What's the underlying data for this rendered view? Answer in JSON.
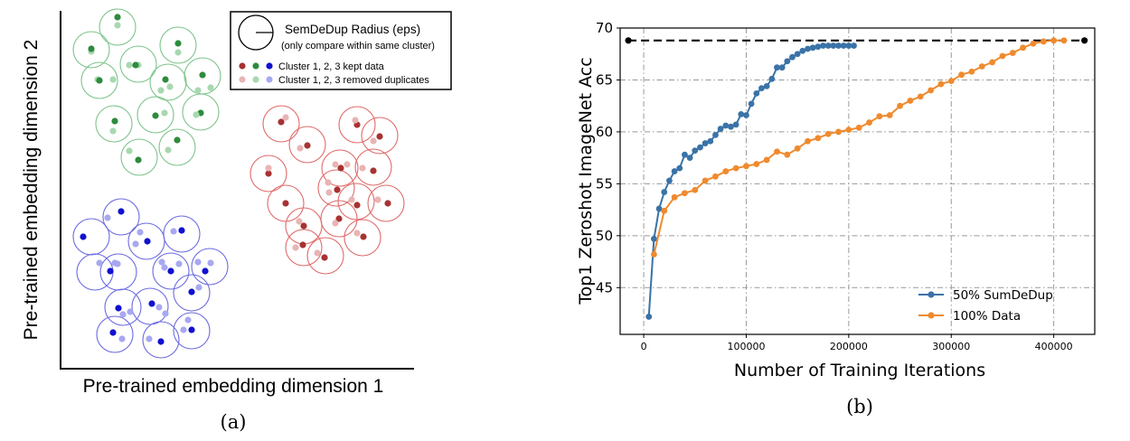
{
  "colors": {
    "green_kept": "#2e8b3e",
    "green_removed": "#a8d8b0",
    "green_circle": "#7cc48a",
    "red_kept": "#a83232",
    "red_removed": "#e8b4b4",
    "red_circle": "#e06a6a",
    "blue_kept": "#1010d0",
    "blue_removed": "#a8a8f0",
    "blue_circle": "#6b6be0",
    "series_semdedup": "#3a73a8",
    "series_full": "#ef8a2e",
    "baseline": "#000000"
  },
  "chart_data": [
    {
      "type": "scatter",
      "panel_label": "(a)",
      "xlabel": "Pre-trained embedding dimension 1",
      "ylabel": "Pre-trained embedding dimension 2",
      "legend": {
        "radius_label": "SemDeDup Radius (eps)",
        "radius_note": "(only compare within same cluster)",
        "kept_label": "Cluster 1, 2, 3 kept data",
        "removed_label": "Cluster 1, 2, 3 removed duplicates"
      },
      "clusters": [
        {
          "name": "Cluster 1",
          "color_key": "green",
          "points": [
            [
              130,
              28,
              "removed"
            ],
            [
              130,
              19,
              "kept"
            ],
            [
              101,
              57,
              "removed"
            ],
            [
              101,
              54,
              "kept"
            ],
            [
              153,
              72,
              "removed"
            ],
            [
              143,
              72,
              "removed"
            ],
            [
              150,
              72,
              "kept"
            ],
            [
              197,
              58,
              "removed"
            ],
            [
              197,
              48,
              "kept"
            ],
            [
              108,
              88,
              "removed"
            ],
            [
              125,
              88,
              "removed"
            ],
            [
              110,
              89,
              "kept"
            ],
            [
              183,
              88,
              "kept"
            ],
            [
              178,
              100,
              "removed"
            ],
            [
              188,
              96,
              "removed"
            ],
            [
              224,
              83,
              "kept"
            ],
            [
              233,
              97,
              "removed"
            ],
            [
              219,
              100,
              "removed"
            ],
            [
              127,
              134,
              "kept"
            ],
            [
              125,
              145,
              "removed"
            ],
            [
              172,
              128,
              "kept"
            ],
            [
              182,
              125,
              "removed"
            ],
            [
              222,
              125,
              "kept"
            ],
            [
              217,
              127,
              "removed"
            ],
            [
              196,
              155,
              "kept"
            ],
            [
              186,
              166,
              "removed"
            ],
            [
              153,
              177,
              "kept"
            ],
            [
              143,
              167,
              "removed"
            ]
          ],
          "circles": [
            [
              130,
              30
            ],
            [
              101,
              55
            ],
            [
              153,
              71
            ],
            [
              197,
              50
            ],
            [
              110,
              89
            ],
            [
              186,
              91
            ],
            [
              224,
              84
            ],
            [
              126,
              137
            ],
            [
              172,
              127
            ],
            [
              222,
              124
            ],
            [
              196,
              163
            ],
            [
              154,
              174
            ]
          ]
        },
        {
          "name": "Cluster 2",
          "color_key": "red",
          "points": [
            [
              311,
              135,
              "kept"
            ],
            [
              316,
              130,
              "removed"
            ],
            [
              340,
              161,
              "kept"
            ],
            [
              332,
              164,
              "removed"
            ],
            [
              395,
              138,
              "kept"
            ],
            [
              393,
              133,
              "removed"
            ],
            [
              420,
              151,
              "kept"
            ],
            [
              413,
              156,
              "removed"
            ],
            [
              297,
              192,
              "kept"
            ],
            [
              297,
              186,
              "removed"
            ],
            [
              377,
              186,
              "kept"
            ],
            [
              371,
              182,
              "removed"
            ],
            [
              384,
              182,
              "removed"
            ],
            [
              413,
              189,
              "kept"
            ],
            [
              401,
              186,
              "removed"
            ],
            [
              373,
              210,
              "kept"
            ],
            [
              363,
              202,
              "removed"
            ],
            [
              364,
              213,
              "removed"
            ],
            [
              316,
              225,
              "kept"
            ],
            [
              429,
              225,
              "kept"
            ],
            [
              418,
              221,
              "removed"
            ],
            [
              395,
              227,
              "kept"
            ],
            [
              389,
              221,
              "removed"
            ],
            [
              375,
              242,
              "kept"
            ],
            [
              371,
              247,
              "removed"
            ],
            [
              336,
              250,
              "kept"
            ],
            [
              331,
              245,
              "removed"
            ],
            [
              402,
              262,
              "kept"
            ],
            [
              395,
              258,
              "removed"
            ],
            [
              335,
              271,
              "kept"
            ],
            [
              327,
              274,
              "removed"
            ],
            [
              359,
              285,
              "kept"
            ],
            [
              351,
              280,
              "removed"
            ]
          ],
          "circles": [
            [
              311,
              137
            ],
            [
              340,
              160
            ],
            [
              395,
              138
            ],
            [
              420,
              150
            ],
            [
              297,
              192
            ],
            [
              376,
              186
            ],
            [
              413,
              185
            ],
            [
              372,
              208
            ],
            [
              316,
              225
            ],
            [
              427,
              225
            ],
            [
              394,
              223
            ],
            [
              375,
              242
            ],
            [
              336,
              250
            ],
            [
              401,
              263
            ],
            [
              336,
              274
            ],
            [
              360,
              283
            ]
          ]
        },
        {
          "name": "Cluster 3",
          "color_key": "blue",
          "points": [
            [
              134,
              234,
              "kept"
            ],
            [
              119,
              241,
              "removed"
            ],
            [
              201,
              255,
              "kept"
            ],
            [
              192,
              256,
              "removed"
            ],
            [
              92,
              262,
              "kept"
            ],
            [
              163,
              267,
              "kept"
            ],
            [
              150,
              270,
              "removed"
            ],
            [
              155,
              257,
              "removed"
            ],
            [
              122,
              300,
              "kept"
            ],
            [
              127,
              291,
              "removed"
            ],
            [
              110,
              291,
              "removed"
            ],
            [
              130,
              292,
              "removed"
            ],
            [
              189,
              300,
              "kept"
            ],
            [
              179,
              290,
              "removed"
            ],
            [
              182,
              296,
              "removed"
            ],
            [
              198,
              292,
              "removed"
            ],
            [
              227,
              300,
              "kept"
            ],
            [
              233,
              291,
              "removed"
            ],
            [
              219,
              290,
              "removed"
            ],
            [
              212,
              323,
              "kept"
            ],
            [
              220,
              318,
              "removed"
            ],
            [
              131,
              341,
              "kept"
            ],
            [
              136,
              348,
              "removed"
            ],
            [
              144,
              345,
              "removed"
            ],
            [
              168,
              336,
              "kept"
            ],
            [
              176,
              340,
              "removed"
            ],
            [
              183,
              347,
              "removed"
            ],
            [
              212,
              365,
              "kept"
            ],
            [
              208,
              354,
              "removed"
            ],
            [
              203,
              365,
              "removed"
            ],
            [
              125,
              368,
              "kept"
            ],
            [
              135,
              375,
              "removed"
            ],
            [
              178,
              378,
              "kept"
            ],
            [
              165,
              375,
              "removed"
            ]
          ],
          "circles": [
            [
              134,
              240
            ],
            [
              201,
              259
            ],
            [
              101,
              262
            ],
            [
              162,
              267
            ],
            [
              105,
              301
            ],
            [
              189,
              300
            ],
            [
              232,
              295
            ],
            [
              131,
              301
            ],
            [
              212,
              324
            ],
            [
              136,
              340
            ],
            [
              166,
              339
            ],
            [
              212,
              366
            ],
            [
              127,
              370
            ],
            [
              178,
              376
            ]
          ]
        }
      ]
    },
    {
      "type": "line",
      "panel_label": "(b)",
      "xlabel": "Number of Training Iterations",
      "ylabel": "Top1 Zeroshot ImageNet Acc",
      "xlim": [
        -23000,
        440000
      ],
      "ylim": [
        40.5,
        70
      ],
      "xticks": [
        0,
        100000,
        200000,
        300000,
        400000
      ],
      "yticks": [
        45,
        50,
        55,
        60,
        65,
        70
      ],
      "grid": true,
      "legend_position": "bottom-right",
      "baseline": {
        "y": 68.8,
        "x": [
          -15000,
          430000
        ],
        "style": "dashed"
      },
      "series": [
        {
          "name": "50% SumDeDup",
          "color_key": "series_semdedup",
          "x": [
            5000,
            10000,
            15000,
            20000,
            25000,
            30000,
            35000,
            40000,
            45000,
            50000,
            55000,
            60000,
            65000,
            70000,
            75000,
            80000,
            85000,
            90000,
            95000,
            100000,
            105000,
            110000,
            115000,
            120000,
            125000,
            130000,
            135000,
            140000,
            145000,
            150000,
            155000,
            160000,
            165000,
            170000,
            175000,
            180000,
            185000,
            190000,
            195000,
            200000,
            205000
          ],
          "y": [
            42.2,
            49.7,
            52.6,
            54.2,
            55.3,
            56.2,
            56.5,
            57.8,
            57.5,
            58.2,
            58.5,
            58.9,
            59.1,
            59.7,
            60.3,
            60.6,
            60.5,
            60.7,
            61.7,
            61.6,
            62.7,
            63.7,
            64.2,
            64.4,
            65.1,
            66.2,
            66.2,
            66.8,
            67.2,
            67.5,
            67.8,
            68.0,
            68.1,
            68.2,
            68.3,
            68.3,
            68.3,
            68.3,
            68.3,
            68.3,
            68.3
          ]
        },
        {
          "name": "100% Data",
          "color_key": "series_full",
          "x": [
            10000,
            20000,
            30000,
            40000,
            50000,
            60000,
            70000,
            80000,
            90000,
            100000,
            110000,
            120000,
            130000,
            140000,
            150000,
            160000,
            170000,
            180000,
            190000,
            200000,
            210000,
            220000,
            230000,
            240000,
            250000,
            260000,
            270000,
            280000,
            290000,
            300000,
            310000,
            320000,
            330000,
            340000,
            350000,
            360000,
            370000,
            380000,
            390000,
            400000,
            410000
          ],
          "y": [
            48.2,
            52.4,
            53.7,
            54.1,
            54.4,
            55.3,
            55.7,
            56.2,
            56.5,
            56.7,
            56.9,
            57.3,
            58.1,
            57.8,
            58.4,
            59.1,
            59.4,
            59.8,
            60.0,
            60.2,
            60.4,
            60.9,
            61.5,
            61.6,
            62.5,
            63.0,
            63.4,
            64.0,
            64.6,
            64.9,
            65.5,
            65.8,
            66.3,
            66.7,
            67.3,
            67.6,
            68.1,
            68.5,
            68.7,
            68.8,
            68.8
          ]
        }
      ]
    }
  ]
}
